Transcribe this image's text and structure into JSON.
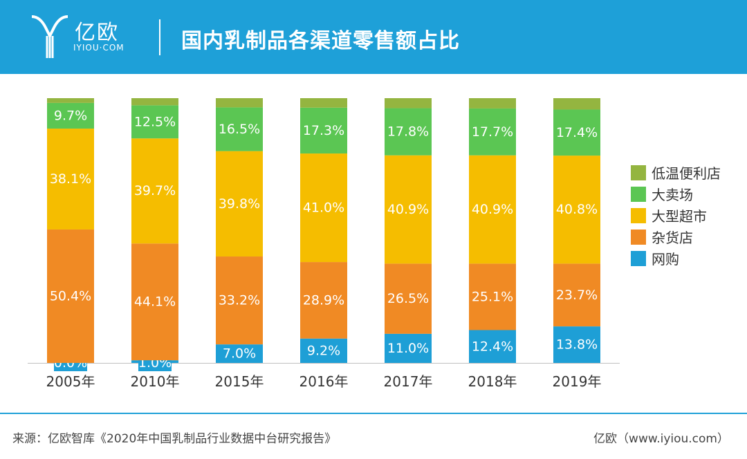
{
  "header": {
    "logo_cn": "亿欧",
    "logo_en": "IYIOU·COM",
    "title": "国内乳制品各渠道零售额占比"
  },
  "colors": {
    "header_bg": "#1ea0d8",
    "online": "#1e9fd6",
    "grocery": "#f08a24",
    "supermarket": "#f5bd00",
    "hypermarket": "#5bc653",
    "convenience": "#94b540"
  },
  "chart_data": {
    "type": "bar",
    "stacked": true,
    "normalized": true,
    "title": "国内乳制品各渠道零售额占比",
    "categories": [
      "2005年",
      "2010年",
      "2015年",
      "2016年",
      "2017年",
      "2018年",
      "2019年"
    ],
    "series": [
      {
        "name": "网购",
        "values": [
          0.0,
          1.0,
          7.0,
          9.2,
          11.0,
          12.4,
          13.8
        ],
        "labels": [
          "0.0%",
          "1.0%",
          "7.0%",
          "9.2%",
          "11.0%",
          "12.4%",
          "13.8%"
        ],
        "color": "#1e9fd6"
      },
      {
        "name": "杂货店",
        "values": [
          50.4,
          44.1,
          33.2,
          28.9,
          26.5,
          25.1,
          23.7
        ],
        "labels": [
          "50.4%",
          "44.1%",
          "33.2%",
          "28.9%",
          "26.5%",
          "25.1%",
          "23.7%"
        ],
        "color": "#f08a24"
      },
      {
        "name": "大型超市",
        "values": [
          38.1,
          39.7,
          39.8,
          41.0,
          40.9,
          40.9,
          40.8
        ],
        "labels": [
          "38.1%",
          "39.7%",
          "39.8%",
          "41.0%",
          "40.9%",
          "40.9%",
          "40.8%"
        ],
        "color": "#f5bd00"
      },
      {
        "name": "大卖场",
        "values": [
          9.7,
          12.5,
          16.5,
          17.3,
          17.8,
          17.7,
          17.4
        ],
        "labels": [
          "9.7%",
          "12.5%",
          "16.5%",
          "17.3%",
          "17.8%",
          "17.7%",
          "17.4%"
        ],
        "color": "#5bc653"
      },
      {
        "name": "低温便利店",
        "values": [
          1.8,
          2.7,
          3.5,
          3.6,
          3.8,
          3.9,
          4.3
        ],
        "labels": [],
        "color": "#94b540"
      }
    ],
    "legend_order": [
      "低温便利店",
      "大卖场",
      "大型超市",
      "杂货店",
      "网购"
    ],
    "legend_position": "right",
    "ylim": [
      0,
      100
    ],
    "grid": false
  },
  "footer": {
    "source": "来源：亿欧智库《2020年中国乳制品行业数据中台研究报告》",
    "site": "亿欧（www.iyiou.com）"
  }
}
